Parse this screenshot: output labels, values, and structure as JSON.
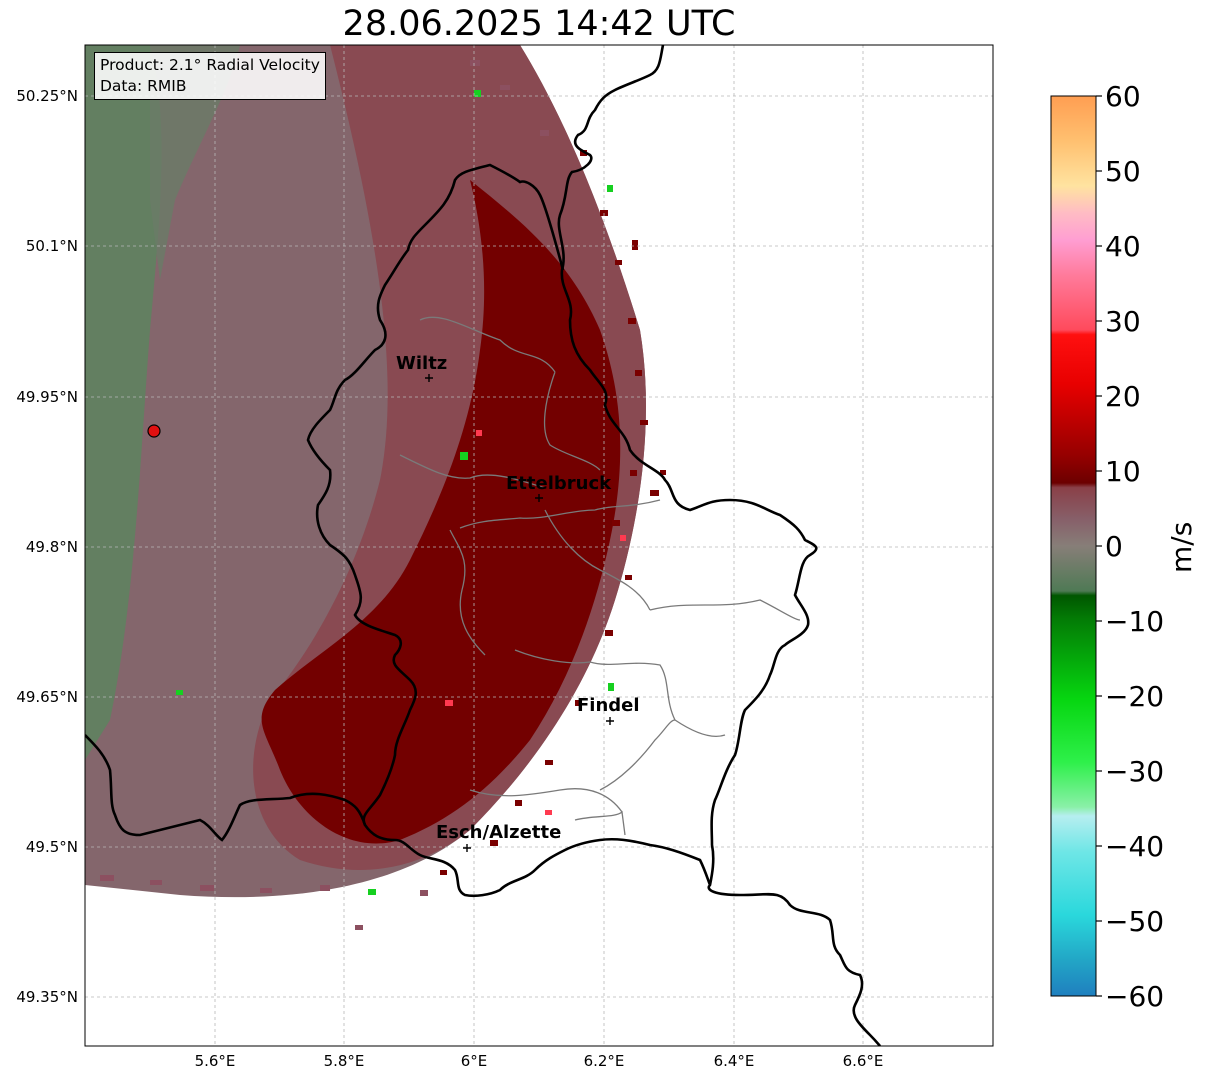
{
  "title": "28.06.2025 14:42 UTC",
  "info_box": {
    "product": "Product: 2.1° Radial Velocity",
    "data": "Data: RMIB"
  },
  "axes": {
    "lon_ticks": [
      "5.6°E",
      "5.8°E",
      "6°E",
      "6.2°E",
      "6.4°E",
      "6.6°E"
    ],
    "lat_ticks": [
      "50.25°N",
      "50.1°N",
      "49.95°N",
      "49.8°N",
      "49.65°N",
      "49.5°N",
      "49.35°N"
    ]
  },
  "cities": [
    {
      "name": "Wiltz"
    },
    {
      "name": "Ettelbruck"
    },
    {
      "name": "Findel"
    },
    {
      "name": "Esch/Alzette"
    }
  ],
  "colorbar": {
    "unit": "m/s",
    "ticks": [
      "60",
      "50",
      "40",
      "30",
      "20",
      "10",
      "0",
      "−10",
      "−20",
      "−30",
      "−40",
      "−50",
      "−60"
    ],
    "range": [
      -60,
      60
    ]
  },
  "colors": {
    "receding_strong": "#7a0000",
    "receding_weak": "#8a4a52",
    "near_zero": "#84696f",
    "approaching_weak": "#5e8260",
    "radar_site": "#e01010"
  }
}
